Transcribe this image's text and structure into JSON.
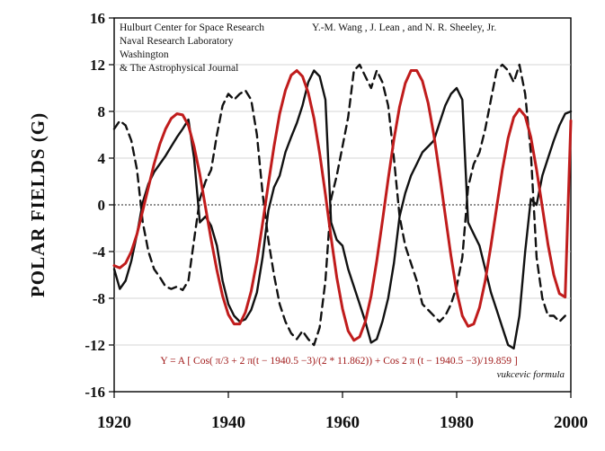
{
  "chart_data": {
    "type": "line",
    "ylabel": "POLAR   FIELDS   (G)",
    "xlabel": "",
    "xlim": [
      1920,
      2000
    ],
    "ylim": [
      -16,
      16
    ],
    "x_ticks": [
      1920,
      1940,
      1960,
      1980,
      2000
    ],
    "y_ticks": [
      16,
      12,
      8,
      4,
      0,
      -4,
      -8,
      -12,
      -16
    ],
    "grid": true,
    "annotations": {
      "source_lines": [
        "Hulburt Center for Space Research",
        "Naval Research Laboratory",
        "Washington",
        "& The Astrophysical Journal"
      ],
      "authors": "Y.-M. Wang , J. Lean , and N. R. Sheeley, Jr.",
      "formula": "Y = A [ Cos( π/3 + 2 π(t − 1940.5 −3)/(2 * 11.862)) + Cos 2 π (t − 1940.5 −3)/19.859 ]",
      "signature": "vukcevic formula"
    },
    "series": [
      {
        "style": "solid",
        "color": "#111111",
        "x": [
          1920,
          1921,
          1922,
          1923,
          1924,
          1925,
          1926,
          1927,
          1928,
          1929,
          1930,
          1931,
          1932,
          1933,
          1934,
          1935,
          1936,
          1937,
          1938,
          1939,
          1940,
          1941,
          1942,
          1943,
          1944,
          1945,
          1946,
          1947,
          1948,
          1949,
          1950,
          1951,
          1952,
          1953,
          1954,
          1955,
          1956,
          1957,
          1958,
          1959,
          1960,
          1961,
          1962,
          1963,
          1964,
          1965,
          1966,
          1967,
          1968,
          1969,
          1970,
          1971,
          1972,
          1973,
          1974,
          1975,
          1976,
          1977,
          1978,
          1979,
          1980,
          1981,
          1982,
          1983,
          1984,
          1985,
          1986,
          1987,
          1988,
          1989,
          1990,
          1991,
          1992,
          1993,
          1994,
          1995,
          1996,
          1997,
          1998,
          1999,
          2000
        ],
        "y": [
          -5.5,
          -7.2,
          -6.5,
          -4.8,
          -2.5,
          0.2,
          1.8,
          2.8,
          3.5,
          4.2,
          5.0,
          5.8,
          6.5,
          7.3,
          4.0,
          -1.5,
          -1.0,
          -1.8,
          -3.5,
          -6.5,
          -8.5,
          -9.5,
          -10.0,
          -9.8,
          -9.0,
          -7.5,
          -4.5,
          -0.5,
          1.5,
          2.5,
          4.5,
          5.8,
          7.0,
          8.5,
          10.5,
          11.5,
          11.0,
          9.0,
          -1.5,
          -3.0,
          -3.5,
          -5.5,
          -7.0,
          -8.5,
          -10.0,
          -11.8,
          -11.5,
          -10.0,
          -8.0,
          -5.0,
          -1.0,
          1.0,
          2.5,
          3.5,
          4.5,
          5.0,
          5.5,
          7.0,
          8.5,
          9.5,
          10.0,
          9.0,
          -1.5,
          -2.5,
          -3.5,
          -5.5,
          -7.5,
          -9.0,
          -10.5,
          -12.0,
          -12.3,
          -9.5,
          -4.0,
          0.5,
          0.0,
          2.5,
          4.0,
          5.5,
          6.8,
          7.8,
          8.0
        ]
      },
      {
        "style": "dashed",
        "color": "#111111",
        "x": [
          1920,
          1921,
          1922,
          1923,
          1924,
          1925,
          1926,
          1927,
          1928,
          1929,
          1930,
          1931,
          1932,
          1933,
          1934,
          1935,
          1936,
          1937,
          1938,
          1939,
          1940,
          1941,
          1942,
          1943,
          1944,
          1945,
          1946,
          1947,
          1948,
          1949,
          1950,
          1951,
          1952,
          1953,
          1954,
          1955,
          1956,
          1957,
          1958,
          1959,
          1960,
          1961,
          1962,
          1963,
          1964,
          1965,
          1966,
          1967,
          1968,
          1969,
          1970,
          1971,
          1972,
          1973,
          1974,
          1975,
          1976,
          1977,
          1978,
          1979,
          1980,
          1981,
          1982,
          1983,
          1984,
          1985,
          1986,
          1987,
          1988,
          1989,
          1990,
          1991,
          1992,
          1993,
          1994,
          1995,
          1996,
          1997,
          1998,
          1999
        ],
        "y": [
          6.5,
          7.2,
          6.8,
          5.5,
          3.0,
          -1.5,
          -4.0,
          -5.5,
          -6.2,
          -7.0,
          -7.2,
          -7.0,
          -7.3,
          -6.5,
          -3.0,
          0.5,
          2.0,
          3.0,
          6.0,
          8.5,
          9.5,
          9.0,
          9.5,
          9.8,
          9.0,
          6.0,
          1.0,
          -3.0,
          -6.0,
          -8.5,
          -10.0,
          -11.0,
          -11.5,
          -10.8,
          -11.5,
          -12.0,
          -10.5,
          -6.5,
          0.5,
          2.5,
          5.0,
          7.5,
          11.5,
          12.0,
          11.0,
          10.0,
          11.5,
          10.5,
          8.5,
          4.0,
          -1.0,
          -3.5,
          -5.0,
          -6.5,
          -8.5,
          -9.0,
          -9.5,
          -10.0,
          -9.5,
          -8.5,
          -7.0,
          -4.5,
          1.5,
          3.5,
          4.5,
          6.5,
          9.0,
          11.5,
          12.0,
          11.5,
          10.5,
          12.0,
          9.5,
          4.5,
          -4.5,
          -8.0,
          -9.5,
          -9.5,
          -10.0,
          -9.5
        ]
      },
      {
        "style": "solid",
        "color": "#c01c1c",
        "x": [
          1920,
          1921,
          1922,
          1923,
          1924,
          1925,
          1926,
          1927,
          1928,
          1929,
          1930,
          1931,
          1932,
          1933,
          1934,
          1935,
          1936,
          1937,
          1938,
          1939,
          1940,
          1941,
          1942,
          1943,
          1944,
          1945,
          1946,
          1947,
          1948,
          1949,
          1950,
          1951,
          1952,
          1953,
          1954,
          1955,
          1956,
          1957,
          1958,
          1959,
          1960,
          1961,
          1962,
          1963,
          1964,
          1965,
          1966,
          1967,
          1968,
          1969,
          1970,
          1971,
          1972,
          1973,
          1974,
          1975,
          1976,
          1977,
          1978,
          1979,
          1980,
          1981,
          1982,
          1983,
          1984,
          1985,
          1986,
          1987,
          1988,
          1989,
          1990,
          1991,
          1992,
          1993,
          1994,
          1995,
          1996,
          1997,
          1998,
          1999,
          2000
        ],
        "y": [
          -5.2,
          -5.4,
          -5.0,
          -4.0,
          -2.5,
          -0.5,
          1.5,
          3.5,
          5.2,
          6.5,
          7.4,
          7.8,
          7.7,
          6.8,
          5.0,
          2.6,
          -0.2,
          -3.0,
          -5.6,
          -7.8,
          -9.4,
          -10.2,
          -10.2,
          -9.2,
          -7.4,
          -4.8,
          -1.6,
          1.8,
          5.0,
          7.8,
          9.8,
          11.1,
          11.5,
          11.0,
          9.6,
          7.4,
          4.4,
          0.9,
          -2.8,
          -6.2,
          -8.9,
          -10.8,
          -11.6,
          -11.3,
          -10.0,
          -7.8,
          -4.8,
          -1.4,
          2.2,
          5.6,
          8.4,
          10.4,
          11.5,
          11.5,
          10.6,
          8.7,
          6.0,
          2.7,
          -0.9,
          -4.4,
          -7.4,
          -9.5,
          -10.4,
          -10.2,
          -8.8,
          -6.5,
          -3.5,
          -0.2,
          3.0,
          5.7,
          7.5,
          8.2,
          7.6,
          5.8,
          3.0,
          -0.2,
          -3.4,
          -6.0,
          -7.6,
          -7.9,
          7.2
        ]
      }
    ]
  }
}
